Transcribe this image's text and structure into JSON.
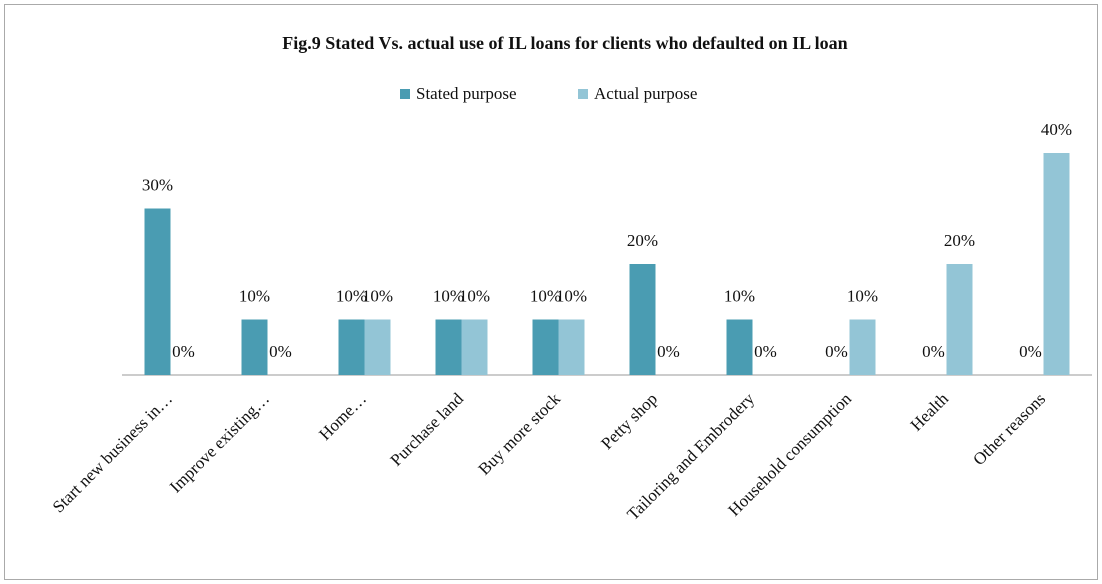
{
  "chart_data": {
    "type": "bar",
    "title": "Fig.9 Stated Vs. actual use of IL loans for clients who defaulted on IL loan",
    "categories": [
      "Start new business in…",
      "Improve existing…",
      "Home…",
      "Purchase land",
      "Buy more stock",
      "Petty shop",
      "Tailoring and Embrodery",
      "Household consumption",
      "Health",
      "Other reasons"
    ],
    "series": [
      {
        "name": "Stated purpose",
        "color": "#4a9cb2",
        "values": [
          30,
          10,
          10,
          10,
          10,
          20,
          10,
          0,
          0,
          0
        ],
        "value_labels": [
          "30%",
          "10%",
          "10%",
          "10%",
          "10%",
          "20%",
          "10%",
          "0%",
          "0%",
          "0%"
        ]
      },
      {
        "name": "Actual purpose",
        "color": "#93c5d6",
        "values": [
          0,
          0,
          10,
          10,
          10,
          0,
          0,
          10,
          20,
          40
        ],
        "value_labels": [
          "0%",
          "0%",
          "10%",
          "10%",
          "10%",
          "0%",
          "0%",
          "10%",
          "20%",
          "40%"
        ]
      }
    ],
    "legend": "top"
  }
}
